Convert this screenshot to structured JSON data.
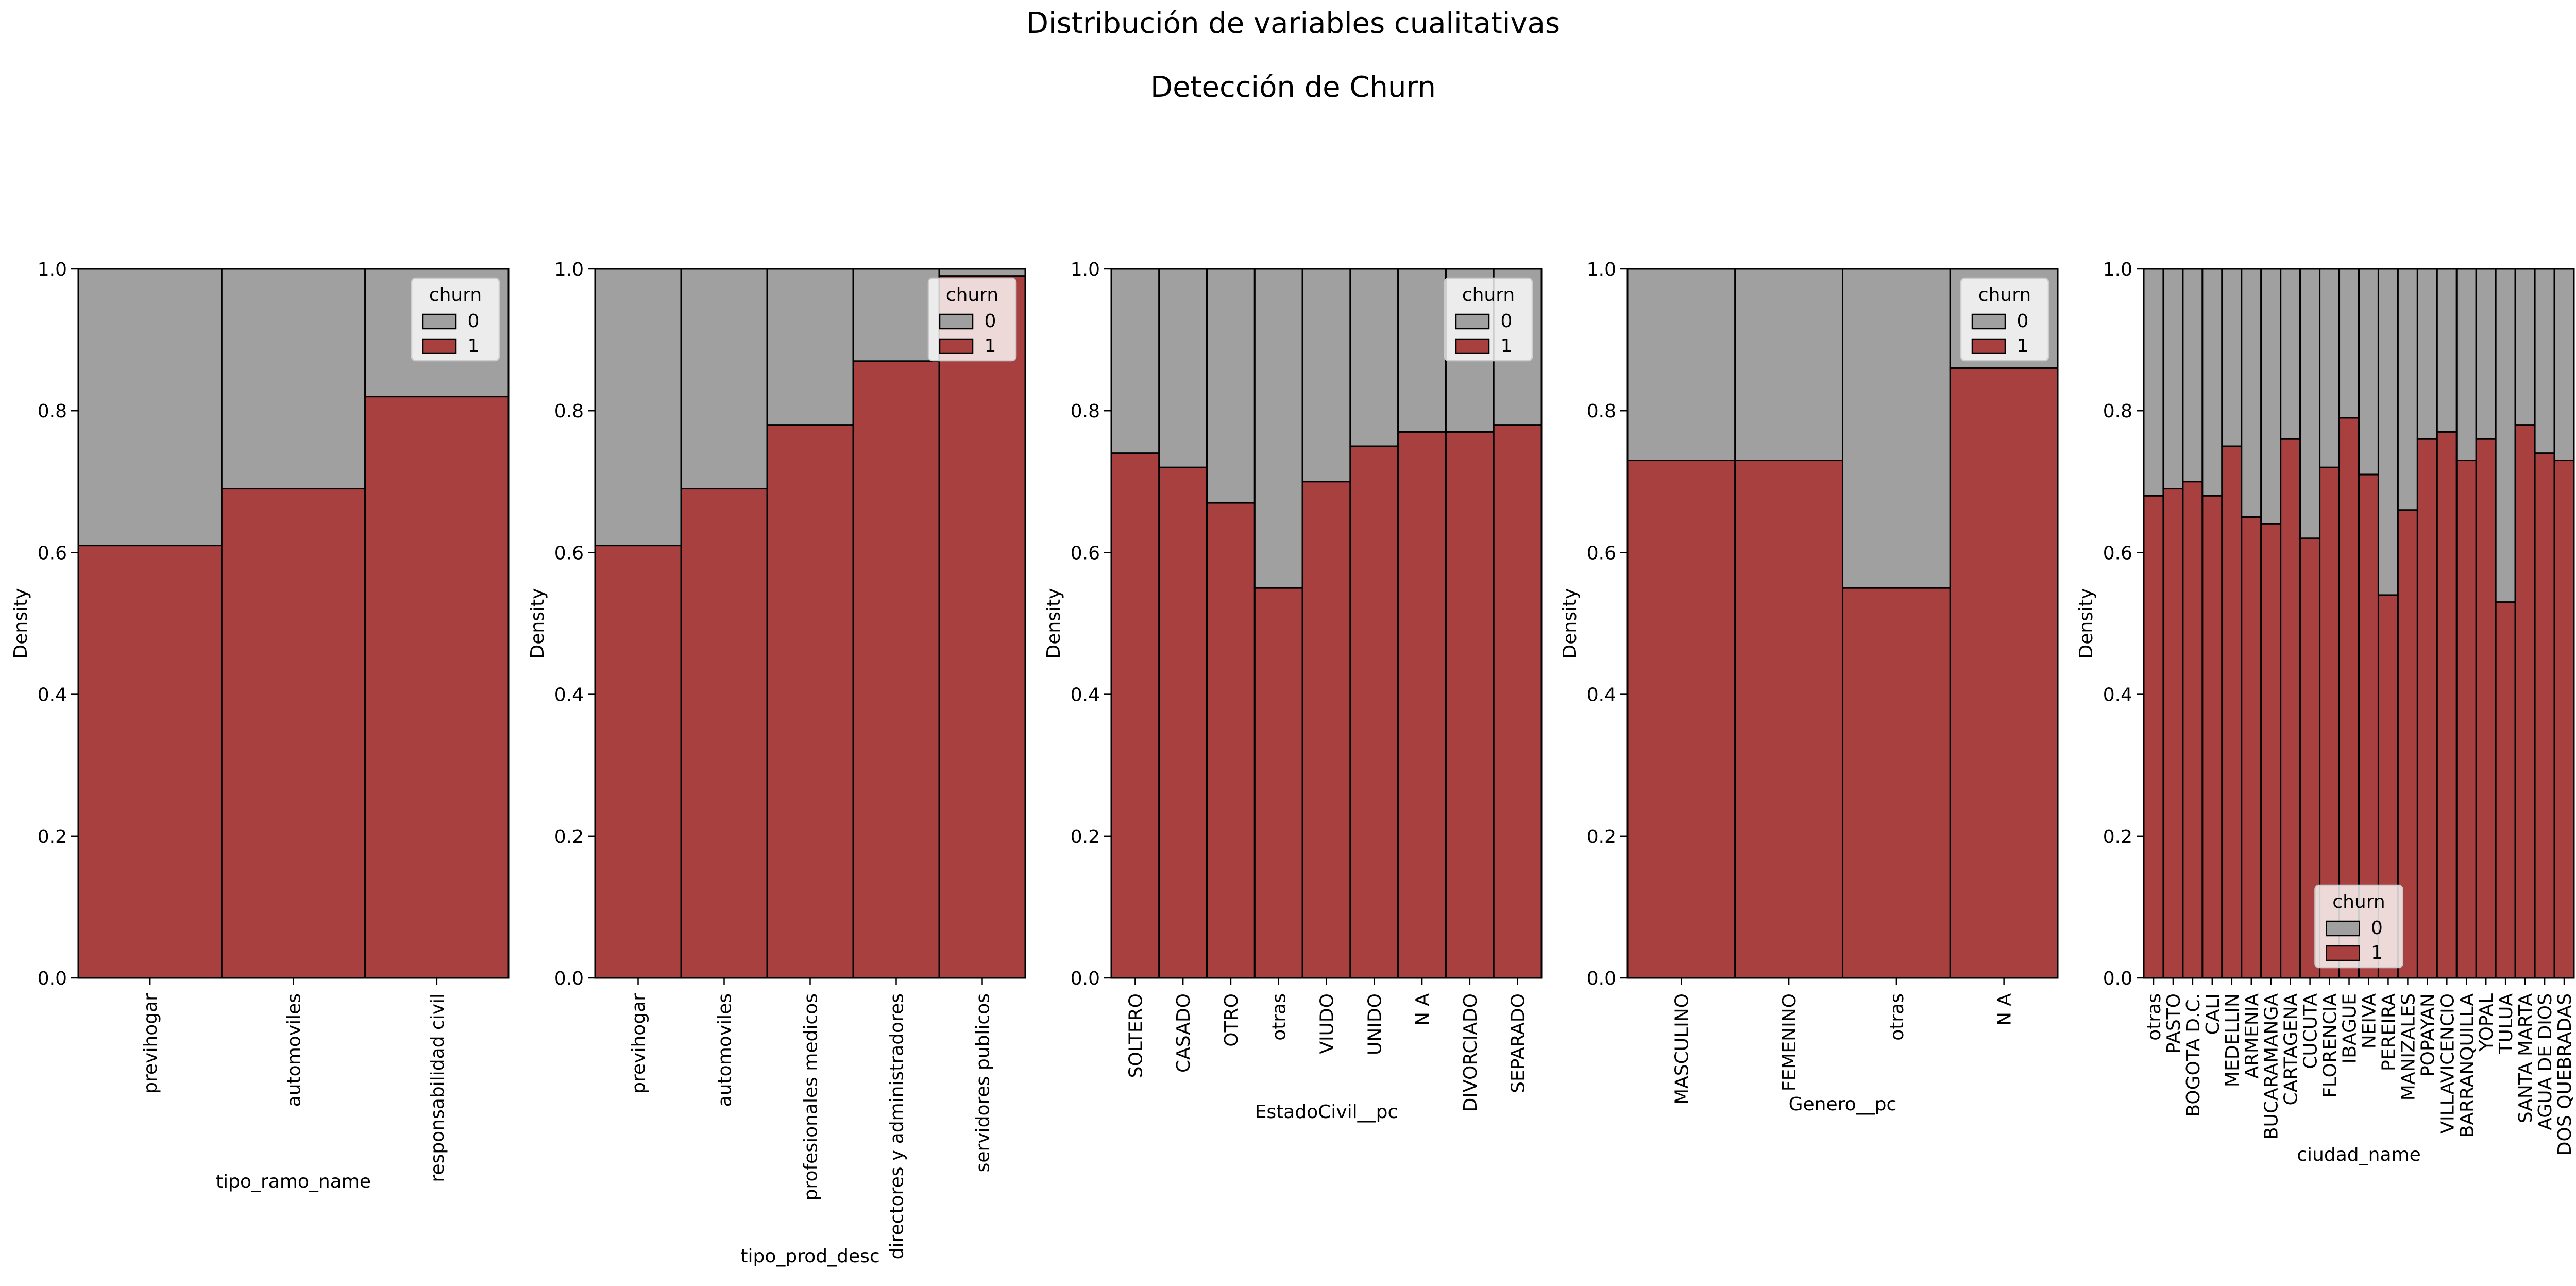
{
  "figure": {
    "title": "Distribución de variables cualitativas",
    "subtitle": "Detección de Churn"
  },
  "colors": {
    "churn_0": "#a0a0a0",
    "churn_1": "#a84040",
    "edge": "#000000"
  },
  "chart_data": [
    {
      "type": "bar",
      "stacked": true,
      "normalized": true,
      "xlabel": "tipo_ramo_name",
      "ylabel": "Density",
      "ylim": [
        0,
        1
      ],
      "yticks": [
        "0.0",
        "0.2",
        "0.4",
        "0.6",
        "0.8",
        "1.0"
      ],
      "categories": [
        "previhogar",
        "automoviles",
        "responsabilidad civil"
      ],
      "widths": [
        1.0,
        1.0,
        1.0
      ],
      "series": [
        {
          "name": "1",
          "values": [
            0.61,
            0.69,
            0.82
          ]
        },
        {
          "name": "0",
          "values": [
            0.39,
            0.31,
            0.18
          ]
        }
      ],
      "legend": {
        "title": "churn",
        "entries": [
          "0",
          "1"
        ],
        "placement": "top-right"
      }
    },
    {
      "type": "bar",
      "stacked": true,
      "normalized": true,
      "xlabel": "tipo_prod_desc",
      "ylabel": "Density",
      "ylim": [
        0,
        1
      ],
      "yticks": [
        "0.0",
        "0.2",
        "0.4",
        "0.6",
        "0.8",
        "1.0"
      ],
      "categories": [
        "previhogar",
        "automoviles",
        "profesionales medicos",
        "directores y administradores",
        "servidores publicos"
      ],
      "widths": [
        1.0,
        1.0,
        1.0,
        1.0,
        1.0
      ],
      "series": [
        {
          "name": "1",
          "values": [
            0.61,
            0.69,
            0.78,
            0.87,
            0.99
          ]
        },
        {
          "name": "0",
          "values": [
            0.39,
            0.31,
            0.22,
            0.13,
            0.01
          ]
        }
      ],
      "legend": {
        "title": "churn",
        "entries": [
          "0",
          "1"
        ],
        "placement": "top-right"
      }
    },
    {
      "type": "bar",
      "stacked": true,
      "normalized": true,
      "xlabel": "EstadoCivil__pc",
      "ylabel": "Density",
      "ylim": [
        0,
        1
      ],
      "yticks": [
        "0.0",
        "0.2",
        "0.4",
        "0.6",
        "0.8",
        "1.0"
      ],
      "categories": [
        "SOLTERO",
        "CASADO",
        "OTRO",
        "otras",
        "VIUDO",
        "UNIDO",
        "N A",
        "DIVORCIADO",
        "SEPARADO"
      ],
      "widths": [
        1.0,
        1.0,
        1.0,
        1.0,
        1.0,
        1.0,
        1.0,
        1.0,
        1.0
      ],
      "series": [
        {
          "name": "1",
          "values": [
            0.74,
            0.72,
            0.67,
            0.55,
            0.7,
            0.75,
            0.77,
            0.77,
            0.78
          ]
        },
        {
          "name": "0",
          "values": [
            0.26,
            0.28,
            0.33,
            0.45,
            0.3,
            0.25,
            0.23,
            0.23,
            0.22
          ]
        }
      ],
      "legend": {
        "title": "churn",
        "entries": [
          "0",
          "1"
        ],
        "placement": "top-right"
      }
    },
    {
      "type": "bar",
      "stacked": true,
      "normalized": true,
      "xlabel": "Genero__pc",
      "ylabel": "Density",
      "ylim": [
        0,
        1
      ],
      "yticks": [
        "0.0",
        "0.2",
        "0.4",
        "0.6",
        "0.8",
        "1.0"
      ],
      "categories": [
        "MASCULINO",
        "FEMENINO",
        "otras",
        "N A"
      ],
      "widths": [
        1.0,
        1.0,
        1.0,
        1.0
      ],
      "series": [
        {
          "name": "1",
          "values": [
            0.73,
            0.73,
            0.55,
            0.86
          ]
        },
        {
          "name": "0",
          "values": [
            0.27,
            0.27,
            0.45,
            0.14
          ]
        }
      ],
      "legend": {
        "title": "churn",
        "entries": [
          "0",
          "1"
        ],
        "placement": "top-right"
      }
    },
    {
      "type": "bar",
      "stacked": true,
      "normalized": true,
      "xlabel": "ciudad_name",
      "ylabel": "Density",
      "ylim": [
        0,
        1
      ],
      "yticks": [
        "0.0",
        "0.2",
        "0.4",
        "0.6",
        "0.8",
        "1.0"
      ],
      "categories": [
        "otras",
        "PASTO",
        "BOGOTA D.C.",
        "CALI",
        "MEDELLIN",
        "ARMENIA",
        "BUCARAMANGA",
        "CARTAGENA",
        "CUCUTA",
        "FLORENCIA",
        "IBAGUE",
        "NEIVA",
        "PEREIRA",
        "MANIZALES",
        "POPAYAN",
        "VILLAVICENCIO",
        "BARRANQUILLA",
        "YOPAL",
        "TULUA",
        "SANTA MARTA",
        "AGUA DE DIOS",
        "DOS QUEBRADAS"
      ],
      "widths": [
        1.0,
        1.0,
        1.0,
        1.0,
        1.0,
        1.0,
        1.0,
        1.0,
        1.0,
        1.0,
        1.0,
        1.0,
        1.0,
        1.0,
        1.0,
        1.0,
        1.0,
        1.0,
        1.0,
        1.0,
        1.0,
        1.0
      ],
      "series": [
        {
          "name": "1",
          "values": [
            0.68,
            0.69,
            0.7,
            0.68,
            0.75,
            0.65,
            0.64,
            0.76,
            0.62,
            0.72,
            0.79,
            0.71,
            0.54,
            0.66,
            0.76,
            0.77,
            0.73,
            0.76,
            0.53,
            0.78,
            0.74,
            0.73
          ]
        },
        {
          "name": "0",
          "values": [
            0.32,
            0.31,
            0.3,
            0.32,
            0.25,
            0.35,
            0.36,
            0.24,
            0.38,
            0.28,
            0.21,
            0.29,
            0.46,
            0.34,
            0.24,
            0.23,
            0.27,
            0.24,
            0.47,
            0.22,
            0.26,
            0.27
          ]
        }
      ],
      "legend": {
        "title": "churn",
        "entries": [
          "0",
          "1"
        ],
        "placement": "lower-center"
      }
    }
  ]
}
